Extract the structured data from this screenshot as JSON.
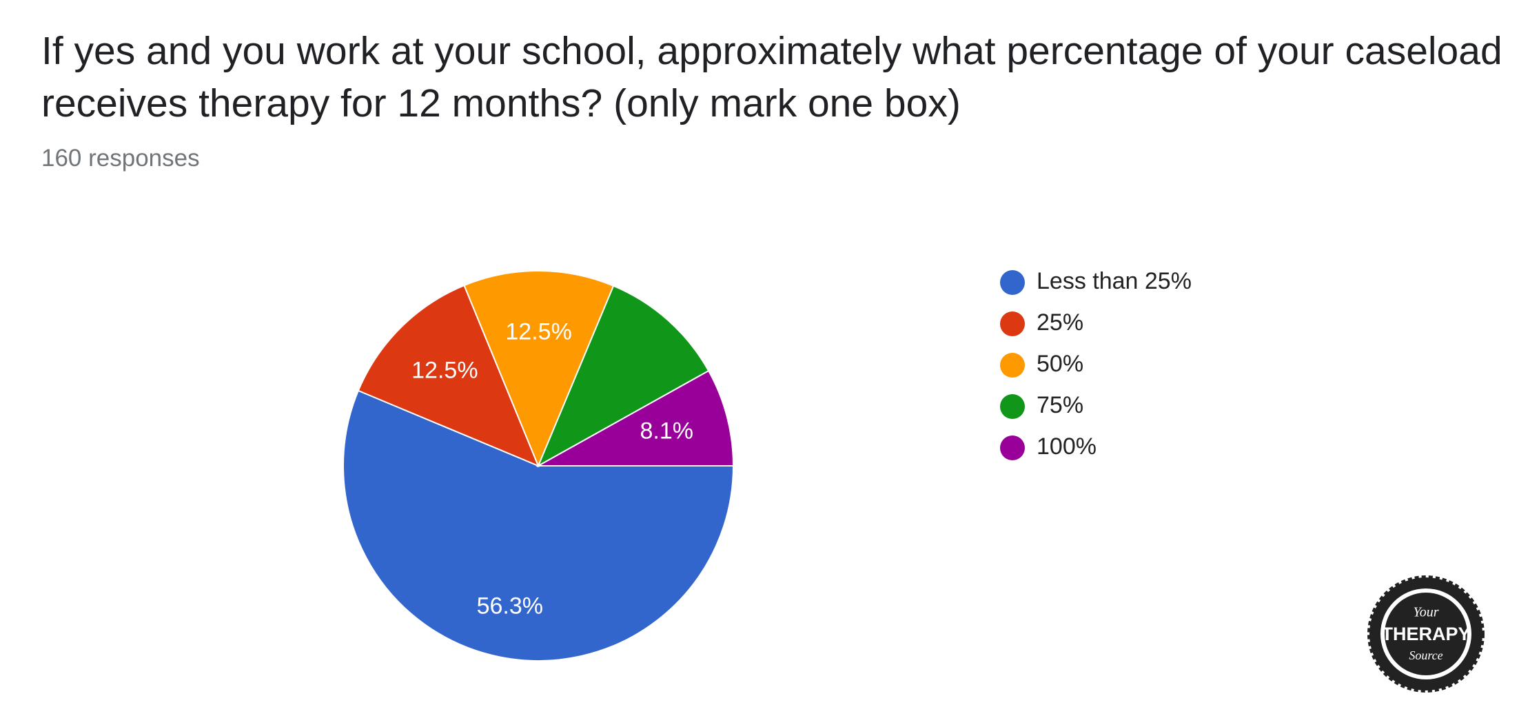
{
  "chart_data": {
    "type": "pie",
    "title": "If yes and you work at your school, approximately what percentage of your caseload receives therapy for 12 months? (only mark one box)",
    "subtitle": "160 responses",
    "categories": [
      "Less than 25%",
      "25%",
      "50%",
      "75%",
      "100%"
    ],
    "values": [
      56.3,
      12.5,
      12.5,
      10.6,
      8.1
    ],
    "value_labels": [
      "56.3%",
      "12.5%",
      "12.5%",
      null,
      "8.1%"
    ],
    "colors": [
      "#3366cc",
      "#dc3912",
      "#ff9900",
      "#109618",
      "#990099"
    ],
    "legend": "right"
  },
  "logo": {
    "top": "Your",
    "middle": "THERAPY",
    "bottom": "Source"
  }
}
